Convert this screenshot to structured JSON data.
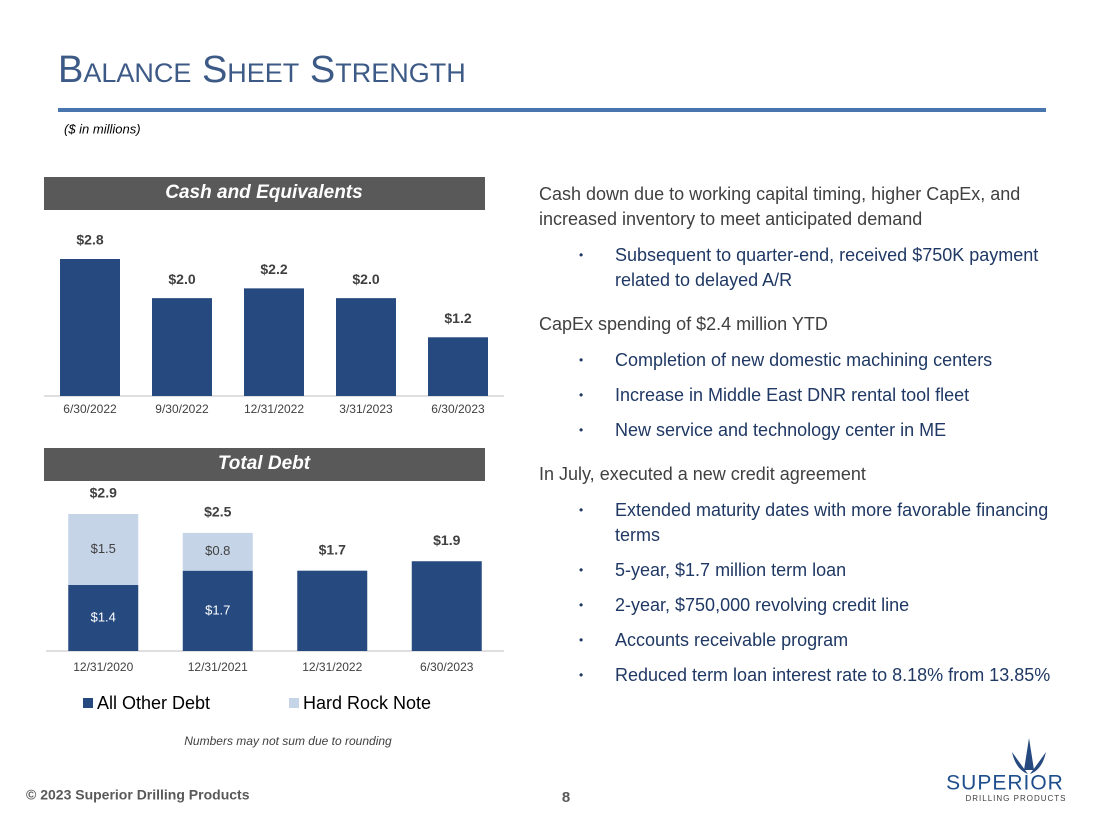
{
  "header": {
    "title": "Balance Sheet Strength",
    "subtitle": "($ in millions)"
  },
  "chart_data": [
    {
      "type": "bar",
      "title": "Cash and Equivalents",
      "categories": [
        "6/30/2022",
        "9/30/2022",
        "12/31/2022",
        "3/31/2023",
        "6/30/2023"
      ],
      "values": [
        2.8,
        2.0,
        2.2,
        2.0,
        1.2
      ],
      "value_labels": [
        "$2.8",
        "$2.0",
        "$2.2",
        "$2.0",
        "$1.2"
      ],
      "color": "#264a80"
    },
    {
      "type": "stacked_bar",
      "title": "Total Debt",
      "categories": [
        "12/31/2020",
        "12/31/2021",
        "12/31/2022",
        "6/30/2023"
      ],
      "series": [
        {
          "name": "All Other Debt",
          "color": "#264a80",
          "values": [
            1.4,
            1.7,
            1.7,
            1.9
          ],
          "value_labels": [
            "$1.4",
            "$1.7",
            null,
            null
          ]
        },
        {
          "name": "Hard Rock Note",
          "color": "#c6d4e8",
          "values": [
            1.5,
            0.8,
            null,
            null
          ],
          "value_labels": [
            "$1.5",
            "$0.8",
            null,
            null
          ]
        }
      ],
      "totals": [
        2.9,
        2.5,
        1.7,
        1.9
      ],
      "total_labels": [
        "$2.9",
        "$2.5",
        "$1.7",
        "$1.9"
      ],
      "note": "Numbers may not sum due to rounding"
    }
  ],
  "body": {
    "sections": [
      {
        "text": "Cash down due to working capital timing, higher CapEx, and increased inventory to meet anticipated demand",
        "bullets": [
          "Subsequent to quarter-end, received $750K payment related to delayed A/R"
        ]
      },
      {
        "text": "CapEx spending of $2.4 million YTD",
        "bullets": [
          "Completion of new domestic machining centers",
          "Increase in Middle East DNR rental tool fleet",
          "New service and technology center in ME"
        ]
      },
      {
        "text": "In July, executed a new credit agreement",
        "bullets": [
          "Extended maturity dates with more favorable financing terms",
          "5-year, $1.7 million term loan",
          "2-year, $750,000 revolving credit line",
          "Accounts receivable program",
          "Reduced term loan interest rate to 8.18% from 13.85%"
        ]
      }
    ]
  },
  "footer": {
    "copyright": "© 2023 Superior Drilling Products",
    "page": 8
  },
  "logo": {
    "name": "SUPERIOR",
    "tagline": "DRILLING PRODUCTS"
  }
}
